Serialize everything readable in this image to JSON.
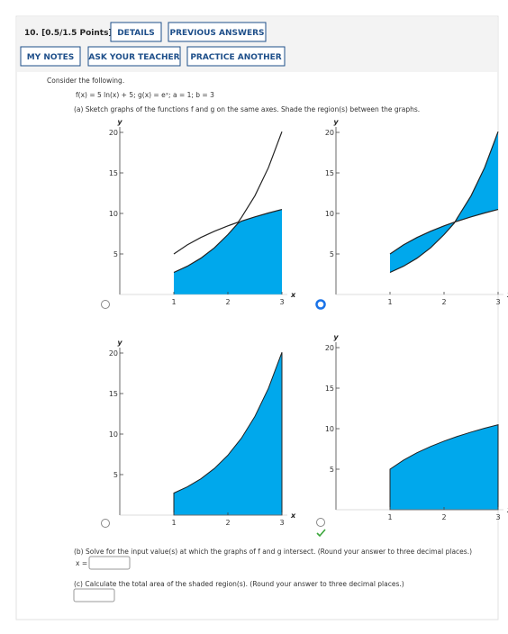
{
  "header": {
    "title": "10. [0.5/1.5 Points]",
    "buttons": [
      "DETAILS",
      "PREVIOUS ANSWERS",
      "MY NOTES",
      "ASK YOUR TEACHER",
      "PRACTICE ANOTHER"
    ]
  },
  "problem": {
    "intro": "Consider the following.",
    "given": "f(x) = 5 ln(x) + 5; g(x) = eˣ; a = 1; b = 3",
    "part_a": "(a) Sketch graphs of the functions f and g on the same axes. Shade the region(s) between the graphs.",
    "graphs": [
      {
        "x_label": "x",
        "y_label": "y",
        "xticks": [
          1,
          2,
          3
        ],
        "yticks": [
          5,
          10,
          15,
          20
        ]
      },
      {
        "x_label": "x",
        "y_label": "y",
        "xticks": [
          1,
          2,
          3
        ],
        "yticks": [
          5,
          10,
          15,
          20
        ]
      },
      {
        "x_label": "x",
        "y_label": "y",
        "xticks": [
          1,
          2,
          3
        ],
        "yticks": [
          5,
          10,
          15,
          20
        ]
      },
      {
        "x_label": "x",
        "y_label": "y",
        "xticks": [
          1,
          2,
          3
        ],
        "yticks": [
          5,
          10,
          15,
          20
        ]
      }
    ],
    "part_b": "(b) Solve for the input value(s) at which the graphs of f and g intersect. (Round your answer to three decimal places.)",
    "part_b_label": "x =",
    "part_c": "(c) Calculate the total area of the shaded region(s). (Round your answer to three decimal places.)"
  }
}
